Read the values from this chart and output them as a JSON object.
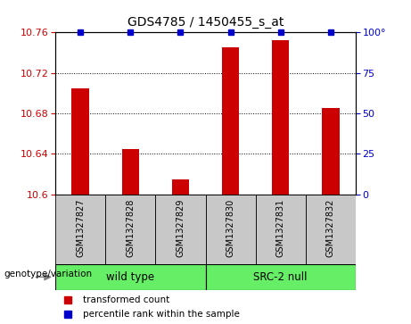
{
  "title": "GDS4785 / 1450455_s_at",
  "samples": [
    "GSM1327827",
    "GSM1327828",
    "GSM1327829",
    "GSM1327830",
    "GSM1327831",
    "GSM1327832"
  ],
  "red_values": [
    10.705,
    10.645,
    10.615,
    10.745,
    10.752,
    10.685
  ],
  "blue_values": [
    100,
    100,
    100,
    100,
    100,
    100
  ],
  "ylim_left": [
    10.6,
    10.76
  ],
  "ylim_right": [
    0,
    100
  ],
  "yticks_left": [
    10.6,
    10.64,
    10.68,
    10.72,
    10.76
  ],
  "yticks_right": [
    0,
    25,
    50,
    75,
    100
  ],
  "group1_label": "wild type",
  "group2_label": "SRC-2 null",
  "group_label_text": "genotype/variation",
  "bar_color": "#CC0000",
  "dot_color": "#0000CC",
  "sample_bg_color": "#C8C8C8",
  "group_color": "#66EE66",
  "legend_red": "transformed count",
  "legend_blue": "percentile rank within the sample",
  "bar_width": 0.35
}
